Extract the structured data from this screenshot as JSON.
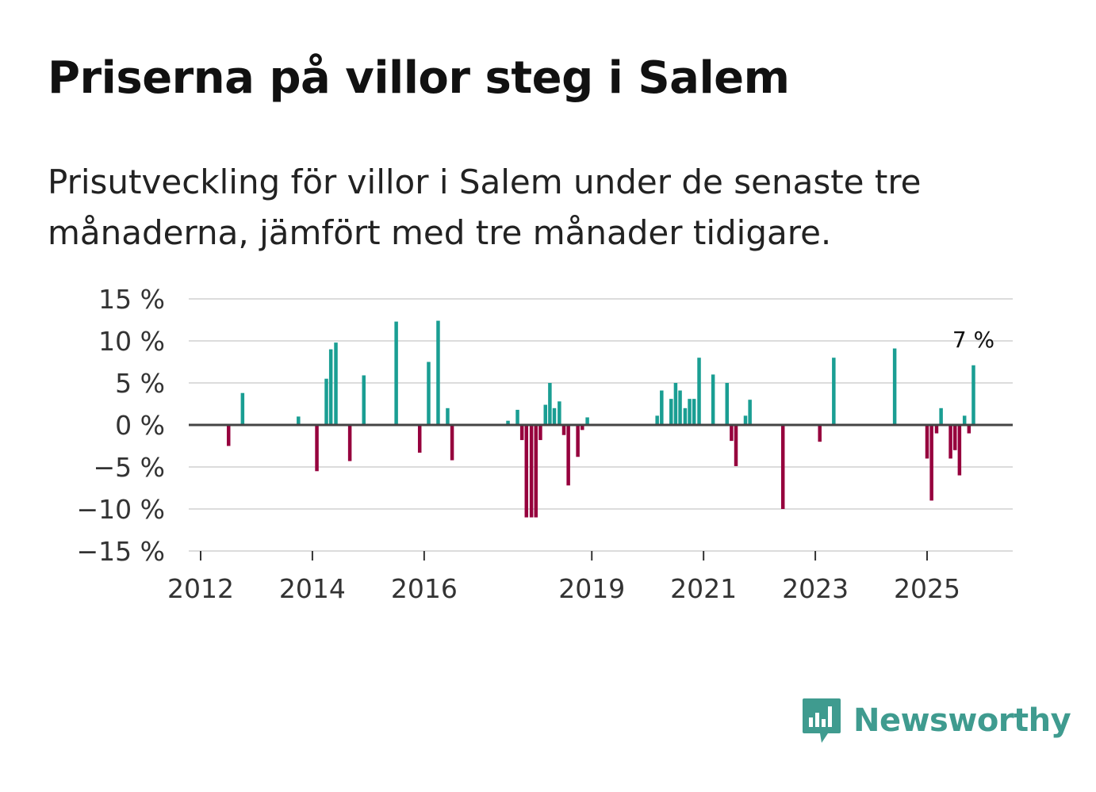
{
  "header": {
    "title": "Priserna på villor steg i Salem",
    "subtitle": "Prisutveckling för villor i Salem under de senaste tre månaderna, jämfört med tre månader tidigare."
  },
  "colors": {
    "positive": "#1a9e93",
    "negative": "#96003d",
    "zero_line": "#444444",
    "grid": "#dcdcdc",
    "brand": "#3f9b8f"
  },
  "chart_data": {
    "type": "bar",
    "title": "Priserna på villor steg i Salem",
    "subtitle": "Prisutveckling för villor i Salem under de senaste tre månaderna, jämfört med tre månader tidigare.",
    "xlabel": "",
    "ylabel": "",
    "unit": "%",
    "ylim": [
      -15,
      15
    ],
    "xlim": [
      2011.8,
      2026.6
    ],
    "y_ticks": [
      15,
      10,
      5,
      0,
      -5,
      -10,
      -15
    ],
    "y_tick_labels": [
      "15 %",
      "10 %",
      "5 %",
      "0 %",
      "−5 %",
      "−10 %",
      "−15 %"
    ],
    "x_ticks": [
      2012,
      2014,
      2016,
      2019,
      2021,
      2023,
      2025
    ],
    "x_tick_labels": [
      "2012",
      "2014",
      "2016",
      "2019",
      "2021",
      "2023",
      "2025"
    ],
    "grid": true,
    "annotation": {
      "label": "7 %",
      "x": 2025.83,
      "value": 7
    },
    "x": [
      2012.5,
      2012.75,
      2013.75,
      2014.08,
      2014.25,
      2014.33,
      2014.42,
      2014.67,
      2014.92,
      2015.5,
      2015.92,
      2016.08,
      2016.25,
      2016.42,
      2016.5,
      2017.5,
      2017.67,
      2017.75,
      2017.83,
      2017.92,
      2018.0,
      2018.08,
      2018.17,
      2018.25,
      2018.33,
      2018.42,
      2018.5,
      2018.58,
      2018.75,
      2018.83,
      2018.92,
      2019.0,
      2020.17,
      2020.25,
      2020.42,
      2020.5,
      2020.58,
      2020.67,
      2020.75,
      2020.83,
      2020.92,
      2021.17,
      2021.42,
      2021.5,
      2021.58,
      2021.75,
      2021.83,
      2022.42,
      2023.08,
      2023.33,
      2024.42,
      2025.0,
      2025.08,
      2025.17,
      2025.25,
      2025.42,
      2025.5,
      2025.58,
      2025.67,
      2025.75,
      2025.83
    ],
    "values": [
      -2.5,
      3.8,
      1.0,
      -5.5,
      5.5,
      9.0,
      9.8,
      -4.3,
      5.9,
      12.3,
      -3.3,
      7.5,
      12.4,
      2.0,
      -4.2,
      0.5,
      1.8,
      -1.8,
      -11.0,
      -11.0,
      -11.0,
      -1.8,
      2.4,
      5.0,
      2.0,
      2.8,
      -1.2,
      -7.2,
      -3.8,
      -0.6,
      0.9,
      0.0,
      1.1,
      4.1,
      3.1,
      5.0,
      4.1,
      2.0,
      3.1,
      3.1,
      8.0,
      6.0,
      5.0,
      -1.9,
      -4.9,
      1.1,
      3.0,
      -10.0,
      -2.0,
      8.0,
      9.1,
      -4.0,
      -9.0,
      -1.0,
      2.0,
      -4.0,
      -3.0,
      -6.0,
      1.1,
      -1.0,
      7.1
    ]
  },
  "footer": {
    "brand_name": "Newsworthy",
    "logo_icon": "newsworthy-chart-bubble-icon"
  }
}
